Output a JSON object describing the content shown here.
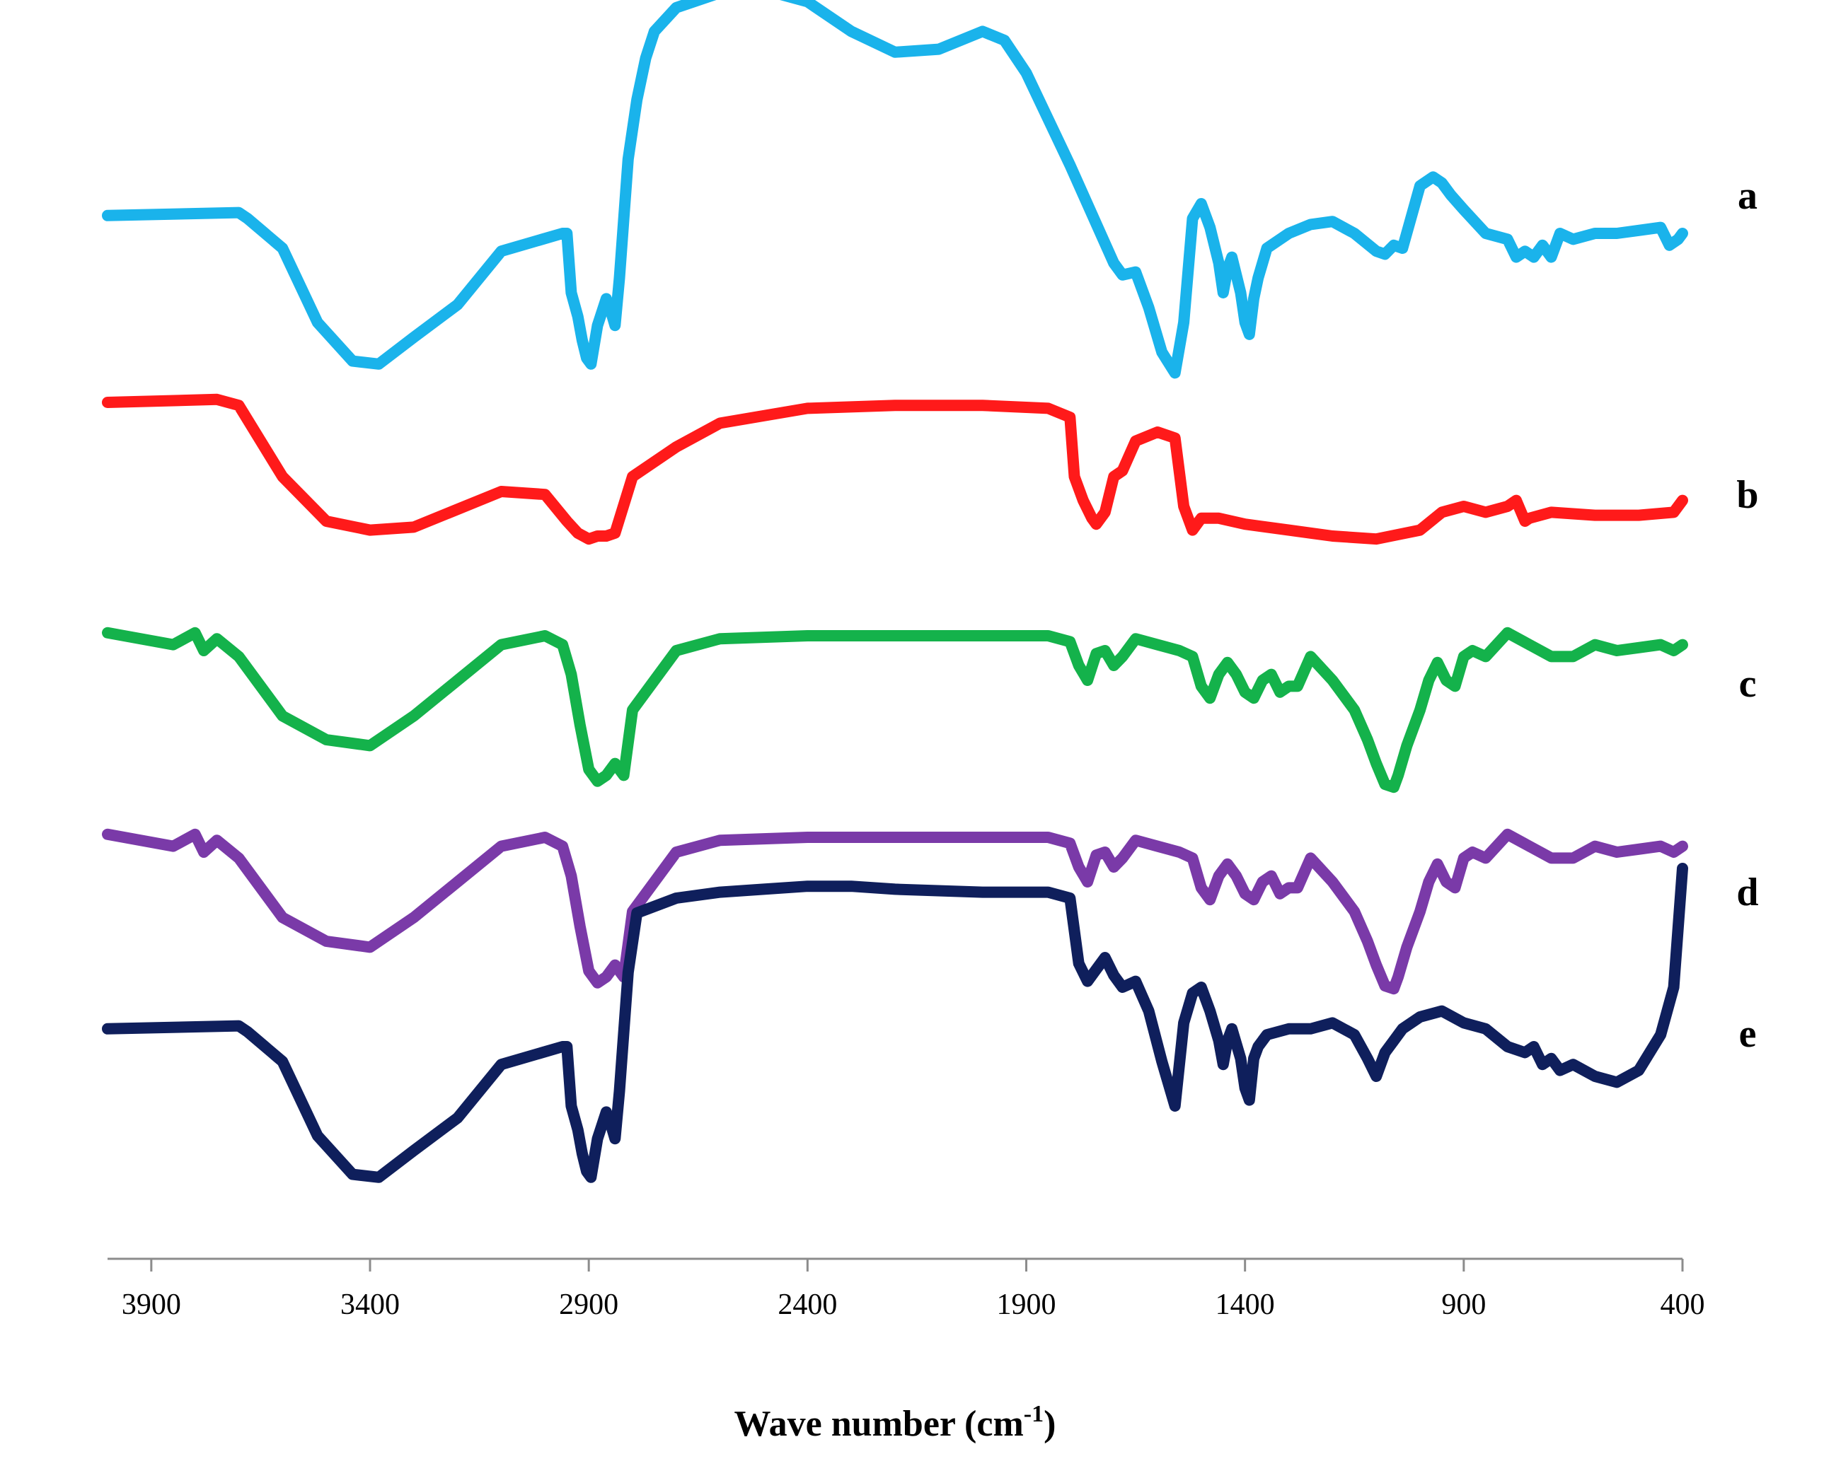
{
  "chart_data": {
    "type": "line",
    "title": "",
    "xlabel": "Wave number (cm",
    "xlabel_sup": "-1",
    "xlabel_close": ")",
    "ylabel": "",
    "xlim": [
      4000,
      400
    ],
    "x_ticks": [
      3900,
      3400,
      2900,
      2400,
      1900,
      1400,
      900,
      400
    ],
    "grid": false,
    "legend": "labels at right end of each trace",
    "y_units": "relative transmittance (stacked, offset per trace)",
    "series": [
      {
        "name": "a",
        "color": "#1ab3eb",
        "x": [
          4000,
          3700,
          3680,
          3600,
          3520,
          3440,
          3380,
          3300,
          3200,
          3100,
          2960,
          2950,
          2940,
          2925,
          2915,
          2905,
          2895,
          2880,
          2860,
          2850,
          2840,
          2830,
          2810,
          2790,
          2770,
          2750,
          2700,
          2600,
          2500,
          2400,
          2300,
          2200,
          2100,
          2000,
          1950,
          1900,
          1800,
          1700,
          1680,
          1650,
          1620,
          1590,
          1560,
          1540,
          1520,
          1500,
          1480,
          1460,
          1450,
          1440,
          1430,
          1410,
          1400,
          1390,
          1380,
          1370,
          1350,
          1300,
          1250,
          1200,
          1150,
          1100,
          1080,
          1060,
          1040,
          1000,
          970,
          950,
          930,
          900,
          850,
          800,
          780,
          760,
          740,
          720,
          700,
          680,
          650,
          600,
          550,
          500,
          450,
          430,
          410,
          400
        ],
        "y": [
          56,
          57,
          55,
          45,
          20,
          7,
          6,
          15,
          26,
          44,
          50,
          50,
          30,
          22,
          14,
          8,
          6,
          19,
          28,
          24,
          19,
          35,
          75,
          95,
          109,
          118,
          126,
          131,
          132,
          128,
          118,
          111,
          112,
          118,
          115,
          104,
          73,
          40,
          36,
          37,
          25,
          10,
          3,
          20,
          55,
          60,
          52,
          40,
          30,
          38,
          42,
          30,
          20,
          16,
          28,
          35,
          45,
          50,
          53,
          54,
          50,
          44,
          43,
          46,
          45,
          66,
          69,
          67,
          63,
          58,
          50,
          48,
          42,
          44,
          42,
          46,
          42,
          50,
          48,
          50,
          50,
          51,
          52,
          46,
          48,
          50
        ]
      },
      {
        "name": "b",
        "color": "#ff1a1a",
        "x": [
          4000,
          3750,
          3700,
          3600,
          3500,
          3400,
          3300,
          3100,
          3000,
          2950,
          2925,
          2900,
          2880,
          2860,
          2840,
          2800,
          2700,
          2600,
          2400,
          2200,
          2000,
          1850,
          1800,
          1790,
          1770,
          1750,
          1740,
          1720,
          1700,
          1680,
          1650,
          1600,
          1560,
          1540,
          1520,
          1500,
          1460,
          1400,
          1300,
          1200,
          1100,
          1000,
          950,
          900,
          850,
          800,
          780,
          760,
          750,
          700,
          600,
          500,
          420,
          400
        ],
        "y": [
          55,
          56,
          54,
          30,
          15,
          12,
          13,
          25,
          24,
          15,
          11,
          9,
          10,
          10,
          11,
          30,
          40,
          48,
          53,
          54,
          54,
          53,
          50,
          30,
          22,
          16,
          14,
          18,
          30,
          32,
          42,
          45,
          43,
          20,
          12,
          16,
          16,
          14,
          12,
          10,
          9,
          12,
          18,
          20,
          18,
          20,
          22,
          15,
          16,
          18,
          17,
          17,
          18,
          22
        ]
      },
      {
        "name": "c",
        "color": "#14b24b",
        "x": [
          4000,
          3850,
          3800,
          3780,
          3750,
          3700,
          3600,
          3500,
          3400,
          3300,
          3200,
          3100,
          3000,
          2960,
          2940,
          2920,
          2900,
          2880,
          2860,
          2840,
          2820,
          2800,
          2700,
          2600,
          2400,
          2200,
          2000,
          1850,
          1800,
          1780,
          1760,
          1740,
          1720,
          1700,
          1680,
          1650,
          1600,
          1550,
          1520,
          1500,
          1480,
          1460,
          1440,
          1420,
          1400,
          1380,
          1360,
          1340,
          1320,
          1300,
          1280,
          1250,
          1200,
          1150,
          1120,
          1100,
          1080,
          1060,
          1050,
          1030,
          1000,
          980,
          960,
          940,
          920,
          900,
          880,
          850,
          800,
          750,
          700,
          650,
          600,
          550,
          500,
          450,
          420,
          400
        ],
        "y": [
          56,
          52,
          56,
          50,
          54,
          48,
          28,
          20,
          18,
          28,
          40,
          52,
          55,
          52,
          42,
          25,
          10,
          6,
          8,
          12,
          8,
          30,
          50,
          54,
          55,
          55,
          55,
          55,
          53,
          45,
          40,
          49,
          50,
          45,
          48,
          54,
          52,
          50,
          48,
          38,
          34,
          42,
          46,
          42,
          36,
          34,
          40,
          42,
          36,
          38,
          38,
          48,
          40,
          30,
          20,
          12,
          5,
          4,
          8,
          18,
          30,
          40,
          46,
          40,
          38,
          48,
          50,
          48,
          56,
          52,
          48,
          48,
          52,
          50,
          51,
          52,
          50,
          52
        ]
      },
      {
        "name": "d",
        "color": "#7a3aa8",
        "x": [
          4000,
          3850,
          3800,
          3780,
          3750,
          3700,
          3600,
          3500,
          3400,
          3300,
          3200,
          3100,
          3000,
          2960,
          2940,
          2920,
          2900,
          2880,
          2860,
          2840,
          2820,
          2800,
          2700,
          2600,
          2400,
          2200,
          2000,
          1850,
          1800,
          1780,
          1760,
          1740,
          1720,
          1700,
          1680,
          1650,
          1600,
          1550,
          1520,
          1500,
          1480,
          1460,
          1440,
          1420,
          1400,
          1380,
          1360,
          1340,
          1320,
          1300,
          1280,
          1250,
          1200,
          1150,
          1120,
          1100,
          1080,
          1060,
          1050,
          1030,
          1000,
          980,
          960,
          940,
          920,
          900,
          880,
          850,
          800,
          750,
          700,
          650,
          600,
          550,
          500,
          450,
          420,
          400
        ],
        "y": [
          56,
          52,
          56,
          50,
          54,
          48,
          28,
          20,
          18,
          28,
          40,
          52,
          55,
          52,
          42,
          25,
          10,
          6,
          8,
          12,
          8,
          30,
          50,
          54,
          55,
          55,
          55,
          55,
          53,
          45,
          40,
          49,
          50,
          45,
          48,
          54,
          52,
          50,
          48,
          38,
          34,
          42,
          46,
          42,
          36,
          34,
          40,
          42,
          36,
          38,
          38,
          48,
          40,
          30,
          20,
          12,
          5,
          4,
          8,
          18,
          30,
          40,
          46,
          40,
          38,
          48,
          50,
          48,
          56,
          52,
          48,
          48,
          52,
          50,
          51,
          52,
          50,
          52
        ]
      },
      {
        "name": "e",
        "color": "#0f1f5c",
        "x": [
          4000,
          3700,
          3680,
          3600,
          3520,
          3440,
          3380,
          3300,
          3200,
          3100,
          2960,
          2950,
          2940,
          2925,
          2915,
          2905,
          2895,
          2880,
          2860,
          2850,
          2840,
          2830,
          2810,
          2790,
          2700,
          2600,
          2500,
          2400,
          2300,
          2200,
          2000,
          1850,
          1800,
          1780,
          1760,
          1740,
          1720,
          1700,
          1680,
          1650,
          1620,
          1590,
          1560,
          1540,
          1520,
          1500,
          1480,
          1460,
          1450,
          1440,
          1430,
          1410,
          1400,
          1390,
          1380,
          1370,
          1350,
          1300,
          1250,
          1200,
          1150,
          1120,
          1100,
          1080,
          1060,
          1040,
          1000,
          950,
          900,
          850,
          800,
          760,
          740,
          720,
          700,
          680,
          650,
          600,
          550,
          500,
          450,
          420,
          410,
          400
        ],
        "y": [
          56,
          57,
          55,
          45,
          20,
          7,
          6,
          15,
          26,
          44,
          50,
          50,
          30,
          22,
          14,
          8,
          6,
          19,
          28,
          24,
          19,
          35,
          75,
          95,
          100,
          102,
          103,
          104,
          104,
          103,
          102,
          102,
          100,
          78,
          72,
          76,
          80,
          74,
          70,
          72,
          62,
          45,
          30,
          58,
          68,
          70,
          62,
          52,
          44,
          52,
          56,
          46,
          36,
          32,
          46,
          50,
          54,
          56,
          56,
          58,
          54,
          46,
          40,
          48,
          52,
          56,
          60,
          62,
          58,
          56,
          50,
          48,
          50,
          44,
          46,
          42,
          44,
          40,
          38,
          42,
          54,
          70,
          90,
          110
        ]
      }
    ]
  }
}
